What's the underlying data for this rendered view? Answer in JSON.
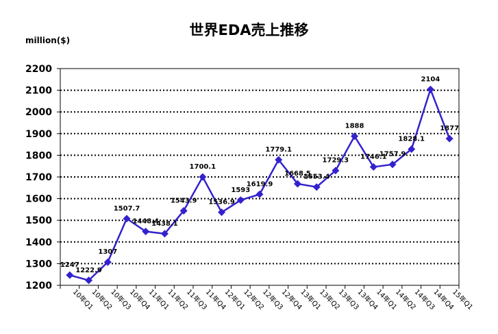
{
  "chart_data": {
    "type": "line",
    "title": "世界EDA売上推移",
    "ylabel": "million($)",
    "xlabel": "",
    "ylim": [
      1200,
      2200
    ],
    "yticks": [
      1200,
      1300,
      1400,
      1500,
      1600,
      1700,
      1800,
      1900,
      2000,
      2100,
      2200
    ],
    "grid": true,
    "legend": "none",
    "line_color": "#3322cc",
    "marker_color": "#3322cc",
    "categories": [
      "10年Q1",
      "10年Q2",
      "10年Q3",
      "10年Q4",
      "11年Q1",
      "11年Q2",
      "11年Q3",
      "11年Q4",
      "12年Q1",
      "12年Q2",
      "12年Q3",
      "12年Q4",
      "13年Q1",
      "13年Q2",
      "13年Q3",
      "13年Q4",
      "14年Q1",
      "14年Q2",
      "14年Q3",
      "14年Q4",
      "15年Q1"
    ],
    "values": [
      1247,
      1222.9,
      1307,
      1507.7,
      1448.4,
      1438.1,
      1543.9,
      1700.1,
      1536.9,
      1593,
      1619.9,
      1779.1,
      1668.5,
      1653.4,
      1729.3,
      1888,
      1746.1,
      1757.9,
      1828.1,
      2104,
      1877
    ],
    "data_labels": [
      "1247",
      "1222.9",
      "1307",
      "1507.7",
      "1448.4",
      "1438.1",
      "1543.9",
      "1700.1",
      "1536.9",
      "1593",
      "1619.9",
      "1779.1",
      "1668.5",
      "1653.4",
      "1729.3",
      "1888",
      "1746.1",
      "1757.9",
      "1828.1",
      "2104",
      "1877"
    ]
  }
}
